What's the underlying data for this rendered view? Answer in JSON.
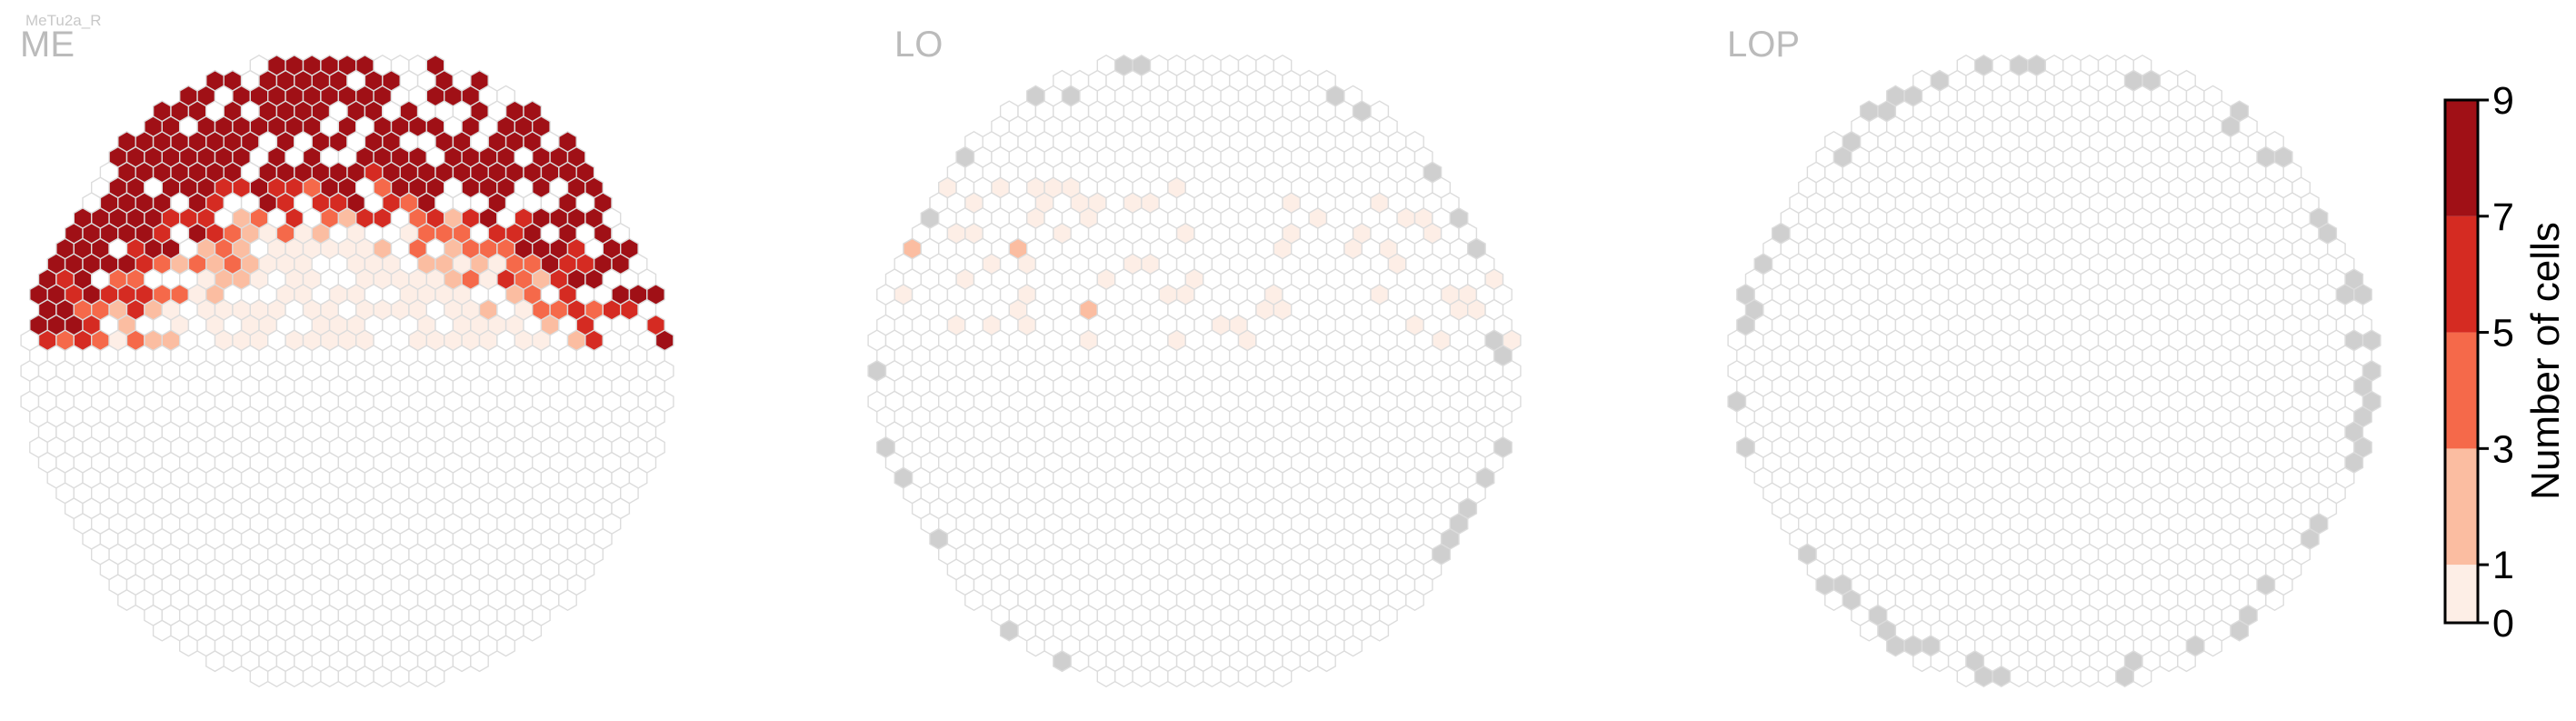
{
  "figure": {
    "supertitle": "MeTu2a_R"
  },
  "chart_data": {
    "type": "heatmap",
    "panels": [
      {
        "title": "ME"
      },
      {
        "title": "LO"
      },
      {
        "title": "LOP"
      }
    ],
    "colorbar": {
      "label": "Number of cells",
      "ticks": [
        "0",
        "1",
        "3",
        "5",
        "7",
        "9"
      ],
      "bins": [
        0,
        1,
        3,
        5,
        7,
        9
      ],
      "colors": [
        "#fdeee6",
        "#fbbda1",
        "#f5694a",
        "#d52b22",
        "#a01016"
      ]
    },
    "colors": {
      "empty_cell_stroke": "#dcdcdc",
      "edge_cell_fill": "#cfcfcf"
    }
  }
}
